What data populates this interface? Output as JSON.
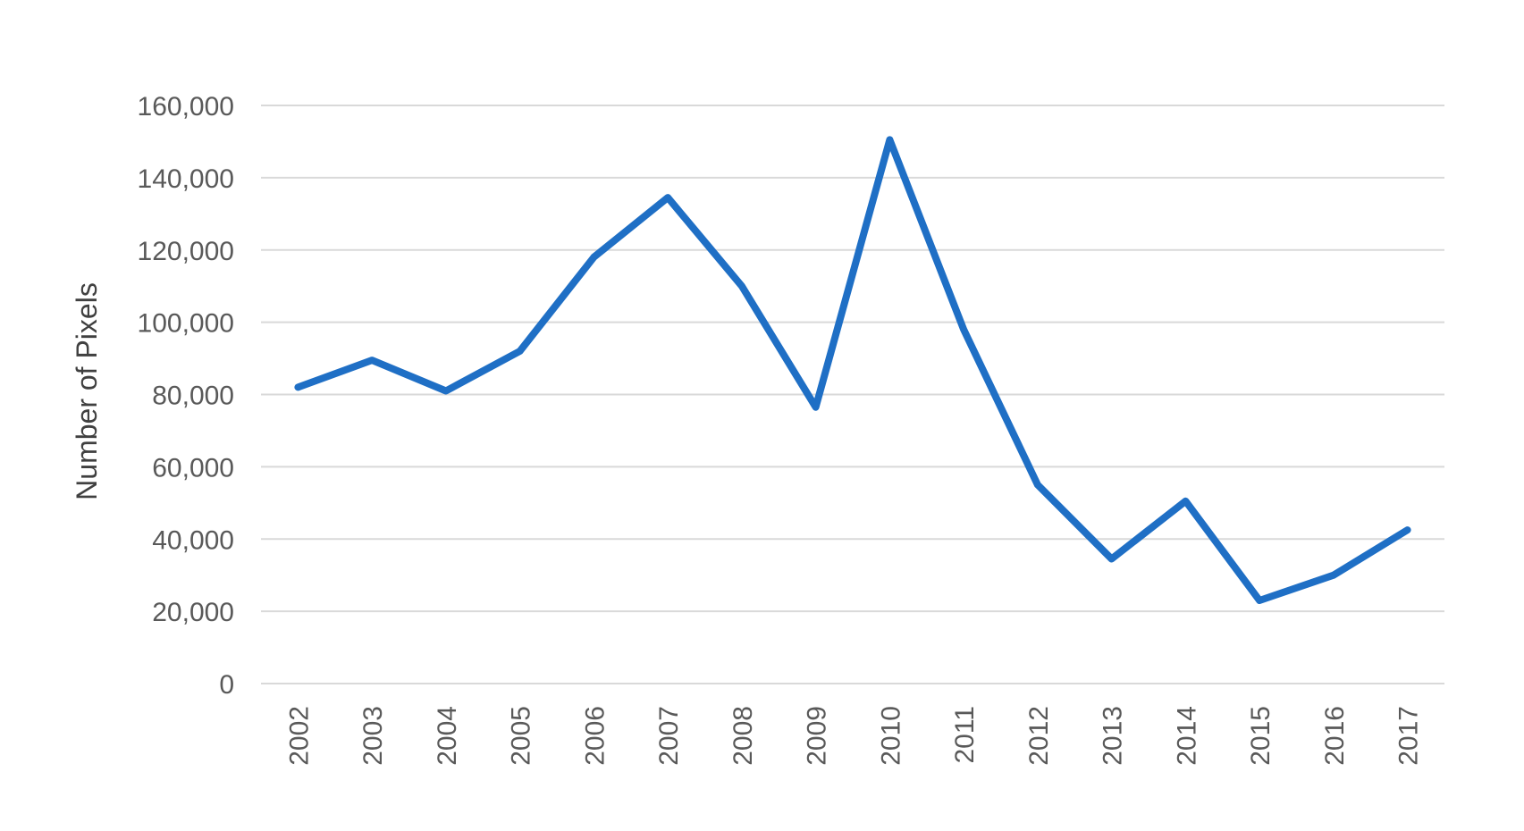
{
  "chart_data": {
    "type": "line",
    "title": "",
    "xlabel": "",
    "ylabel": "Number of Pixels",
    "categories": [
      "2002",
      "2003",
      "2004",
      "2005",
      "2006",
      "2007",
      "2008",
      "2009",
      "2010",
      "2011",
      "2012",
      "2013",
      "2014",
      "2015",
      "2016",
      "2017"
    ],
    "series": [
      {
        "color": "#1f6fc5",
        "values": [
          82000,
          89500,
          81000,
          92000,
          118000,
          134500,
          110000,
          76500,
          150500,
          98000,
          55000,
          34500,
          50500,
          23000,
          30000,
          42500
        ]
      }
    ],
    "ylim": [
      0,
      160000
    ],
    "yticks": [
      0,
      20000,
      40000,
      60000,
      80000,
      100000,
      120000,
      140000,
      160000
    ],
    "ytick_labels": [
      "0",
      "20,000",
      "40,000",
      "60,000",
      "80,000",
      "100,000",
      "120,000",
      "140,000",
      "160,000"
    ],
    "grid": true,
    "legend": "none"
  }
}
